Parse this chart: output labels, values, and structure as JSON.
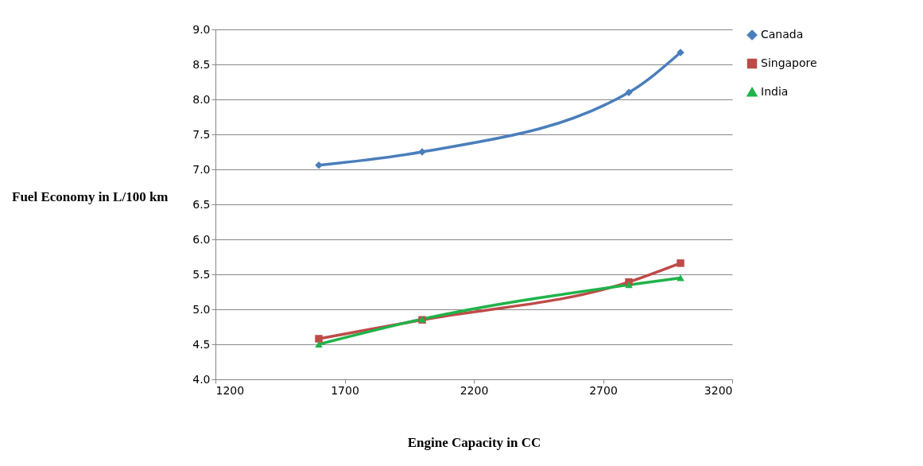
{
  "chart_data": {
    "type": "line",
    "xlabel": "Engine Capacity  in CC",
    "ylabel": "Fuel Economy  in L/100 km",
    "xlim": [
      1200,
      3200
    ],
    "xticks": [
      1200,
      1700,
      2200,
      2700,
      3200
    ],
    "ylim": [
      4.0,
      9.0
    ],
    "yticks": [
      {
        "value": 4,
        "label": "4.0"
      },
      {
        "value": 4.5,
        "label": "4.5"
      },
      {
        "value": 5,
        "label": "5.0"
      },
      {
        "value": 5.5,
        "label": "5.5"
      },
      {
        "value": 6,
        "label": "6.0"
      },
      {
        "value": 6.5,
        "label": "6.5"
      },
      {
        "value": 7,
        "label": "7.0"
      },
      {
        "value": 7.5,
        "label": "7.5"
      },
      {
        "value": 8,
        "label": "8.0"
      },
      {
        "value": 8.5,
        "label": "8.5"
      },
      {
        "value": 9,
        "label": "9.0"
      }
    ],
    "x": [
      1600,
      2000,
      2800,
      3000
    ],
    "series": [
      {
        "name": "Canada",
        "color": "#4a7ebb",
        "marker": "diamond",
        "values": [
          7.06,
          7.25,
          8.1,
          8.67
        ]
      },
      {
        "name": "Singapore",
        "color": "#be4b48",
        "marker": "square",
        "values": [
          4.58,
          4.85,
          5.39,
          5.66
        ]
      },
      {
        "name": "India",
        "color": "#1fb34a",
        "marker": "triangle",
        "values": [
          4.5,
          4.86,
          5.35,
          5.45
        ]
      }
    ],
    "grid": "y",
    "legend": "right",
    "line_style": "solid"
  }
}
